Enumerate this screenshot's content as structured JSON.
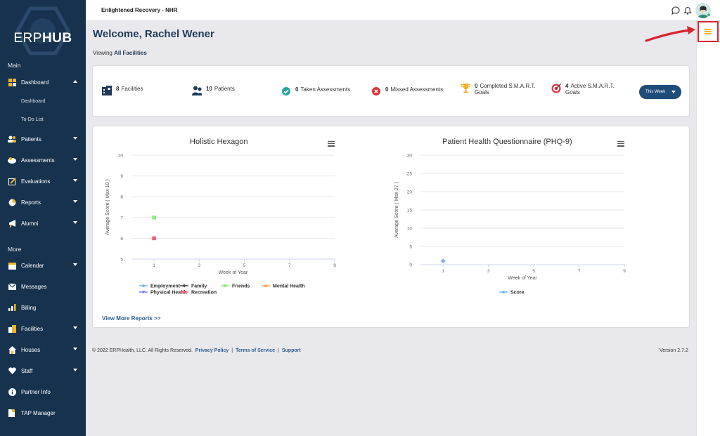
{
  "brand": {
    "logo_light": "ERP",
    "logo_bold": "HUB"
  },
  "topbar": {
    "org_name": "Enlightened Recovery - NHR"
  },
  "sidebar": {
    "main_section": "Main",
    "more_section": "More",
    "dashboard": {
      "label": "Dashboard",
      "sub": [
        "Dashboard",
        "To-Do List"
      ]
    },
    "items_main": [
      {
        "label": "Patients"
      },
      {
        "label": "Assessments"
      },
      {
        "label": "Evaluations"
      },
      {
        "label": "Reports"
      },
      {
        "label": "Alumni"
      }
    ],
    "items_more": [
      {
        "label": "Calendar"
      },
      {
        "label": "Messages"
      },
      {
        "label": "Billing"
      },
      {
        "label": "Facilities"
      },
      {
        "label": "Houses"
      },
      {
        "label": "Staff"
      },
      {
        "label": "Partner Info"
      },
      {
        "label": "TAP Manager"
      }
    ]
  },
  "welcome": {
    "title": "Welcome, Rachel Wener",
    "viewing_prefix": "Viewing",
    "viewing_value": "All Facilities"
  },
  "stats": {
    "facilities": {
      "count": "8",
      "label": "Facilities"
    },
    "patients": {
      "count": "10",
      "label": "Patients"
    },
    "taken": {
      "count": "0",
      "label": "Taken Assessments"
    },
    "missed": {
      "count": "0",
      "label": "Missed Assessments"
    },
    "completed_goals": {
      "count": "0",
      "label": "Completed S.M.A.R.T. Goals"
    },
    "active_goals": {
      "count": "4",
      "label": "Active S.M.A.R.T. Goals"
    },
    "period_button": "This Week"
  },
  "colors": {
    "sidebar": "#17324e",
    "accent": "#1f3a5c",
    "link": "#2a5d93",
    "highlight": "#d9232e",
    "menu": "#f0b429"
  },
  "chart_data": [
    {
      "type": "scatter",
      "title": "Holistic Hexagon",
      "xlabel": "Week of Year",
      "ylabel": "Average Score ( Max 10 )",
      "xlim": [
        0,
        9
      ],
      "ylim": [
        5,
        10
      ],
      "xticks": [
        1,
        3,
        5,
        7,
        9
      ],
      "yticks": [
        5,
        6,
        7,
        8,
        9,
        10
      ],
      "grid": true,
      "legend_position": "bottom",
      "series": [
        {
          "name": "Employment",
          "color": "#7cb5ec",
          "marker": "circle",
          "points": []
        },
        {
          "name": "Family",
          "color": "#434348",
          "marker": "diamond",
          "points": []
        },
        {
          "name": "Friends",
          "color": "#90ed7d",
          "marker": "square",
          "points": [
            [
              1,
              7
            ]
          ]
        },
        {
          "name": "Mental Health",
          "color": "#f7a35c",
          "marker": "triangle",
          "points": []
        },
        {
          "name": "Physical Health",
          "color": "#8085e9",
          "marker": "triangle-down",
          "points": []
        },
        {
          "name": "Recreation",
          "color": "#f15c80",
          "marker": "square",
          "points": [
            [
              1,
              6
            ]
          ]
        }
      ]
    },
    {
      "type": "scatter",
      "title": "Patient Health Questionnaire (PHQ-9)",
      "xlabel": "Week of Year",
      "ylabel": "Average Score ( Max 27 )",
      "xlim": [
        0,
        9
      ],
      "ylim": [
        0,
        30
      ],
      "xticks": [
        1,
        3,
        5,
        7,
        9
      ],
      "yticks": [
        0,
        5,
        10,
        15,
        20,
        25,
        30
      ],
      "grid": true,
      "legend_position": "bottom",
      "series": [
        {
          "name": "Score",
          "color": "#7cb5ec",
          "marker": "circle",
          "points": [
            [
              1,
              1
            ]
          ]
        }
      ]
    }
  ],
  "charts": {
    "view_more": "View More Reports >>"
  },
  "footer": {
    "copyright": "© 2022 ERPHealth, LLC. All Rights Reserved.",
    "links": [
      "Privacy Policy",
      "Terms of Service",
      "Support"
    ],
    "version": "Version 2.7.2"
  }
}
